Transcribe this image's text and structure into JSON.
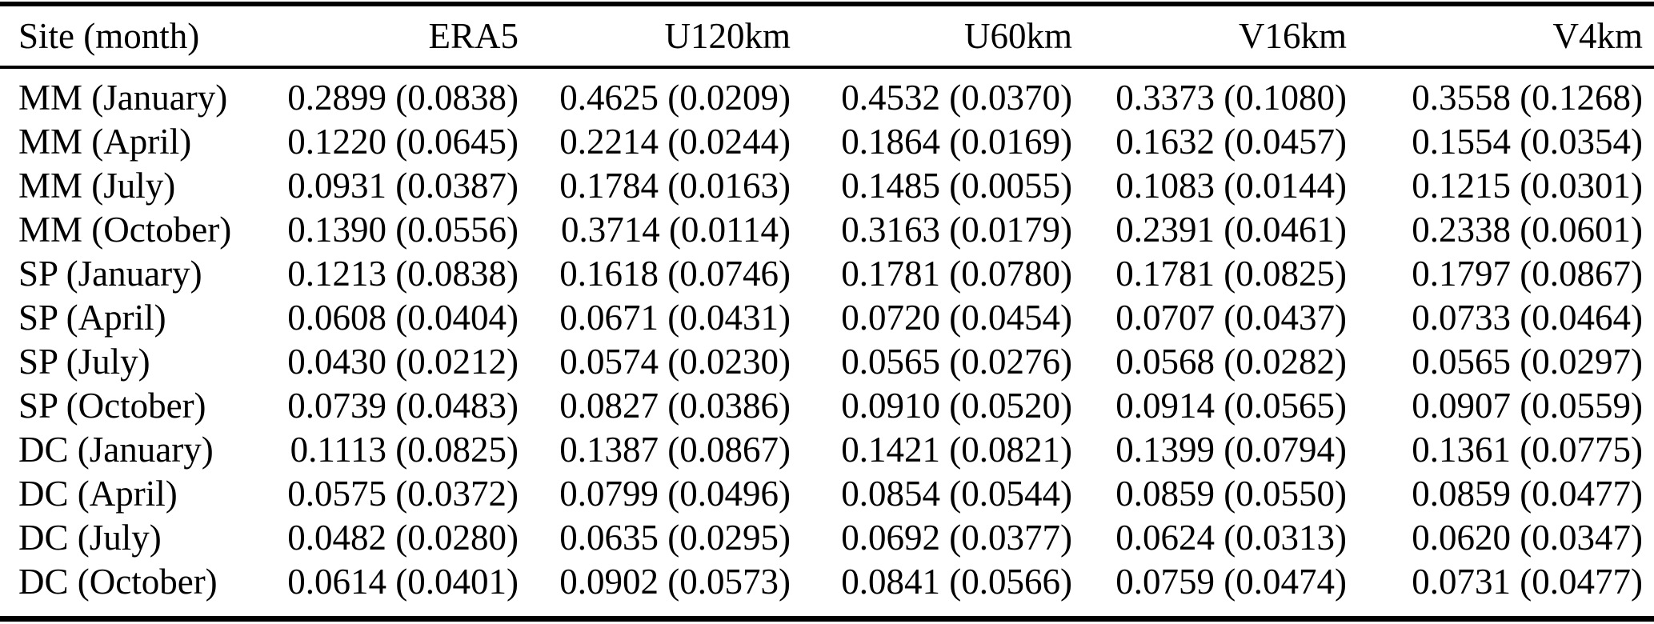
{
  "table": {
    "columns": [
      "Site (month)",
      "ERA5",
      "U120km",
      "U60km",
      "V16km",
      "V4km"
    ],
    "rows": [
      {
        "site": "MM (January)",
        "values": [
          "0.2899 (0.0838)",
          "0.4625 (0.0209)",
          "0.4532 (0.0370)",
          "0.3373 (0.1080)",
          "0.3558 (0.1268)"
        ]
      },
      {
        "site": "MM (April)",
        "values": [
          "0.1220 (0.0645)",
          "0.2214 (0.0244)",
          "0.1864 (0.0169)",
          "0.1632 (0.0457)",
          "0.1554 (0.0354)"
        ]
      },
      {
        "site": "MM (July)",
        "values": [
          "0.0931 (0.0387)",
          "0.1784 (0.0163)",
          "0.1485 (0.0055)",
          "0.1083 (0.0144)",
          "0.1215 (0.0301)"
        ]
      },
      {
        "site": "MM (October)",
        "values": [
          "0.1390 (0.0556)",
          "0.3714 (0.0114)",
          "0.3163 (0.0179)",
          "0.2391 (0.0461)",
          "0.2338 (0.0601)"
        ]
      },
      {
        "site": "SP (January)",
        "values": [
          "0.1213 (0.0838)",
          "0.1618 (0.0746)",
          "0.1781 (0.0780)",
          "0.1781 (0.0825)",
          "0.1797 (0.0867)"
        ]
      },
      {
        "site": "SP (April)",
        "values": [
          "0.0608 (0.0404)",
          "0.0671 (0.0431)",
          "0.0720 (0.0454)",
          "0.0707 (0.0437)",
          "0.0733 (0.0464)"
        ]
      },
      {
        "site": "SP (July)",
        "values": [
          "0.0430 (0.0212)",
          "0.0574 (0.0230)",
          "0.0565 (0.0276)",
          "0.0568 (0.0282)",
          "0.0565 (0.0297)"
        ]
      },
      {
        "site": "SP (October)",
        "values": [
          "0.0739 (0.0483)",
          "0.0827 (0.0386)",
          "0.0910 (0.0520)",
          "0.0914 (0.0565)",
          "0.0907 (0.0559)"
        ]
      },
      {
        "site": "DC (January)",
        "values": [
          "0.1113 (0.0825)",
          "0.1387 (0.0867)",
          "0.1421 (0.0821)",
          "0.1399 (0.0794)",
          "0.1361 (0.0775)"
        ]
      },
      {
        "site": "DC (April)",
        "values": [
          "0.0575 (0.0372)",
          "0.0799 (0.0496)",
          "0.0854 (0.0544)",
          "0.0859 (0.0550)",
          "0.0859 (0.0477)"
        ]
      },
      {
        "site": "DC (July)",
        "values": [
          "0.0482 (0.0280)",
          "0.0635 (0.0295)",
          "0.0692 (0.0377)",
          "0.0624 (0.0313)",
          "0.0620 (0.0347)"
        ]
      },
      {
        "site": "DC (October)",
        "values": [
          "0.0614 (0.0401)",
          "0.0902 (0.0573)",
          "0.0841 (0.0566)",
          "0.0759 (0.0474)",
          "0.0731 (0.0477)"
        ]
      }
    ]
  },
  "colors": {
    "text": "#000000",
    "background": "#ffffff",
    "rule": "#000000"
  }
}
